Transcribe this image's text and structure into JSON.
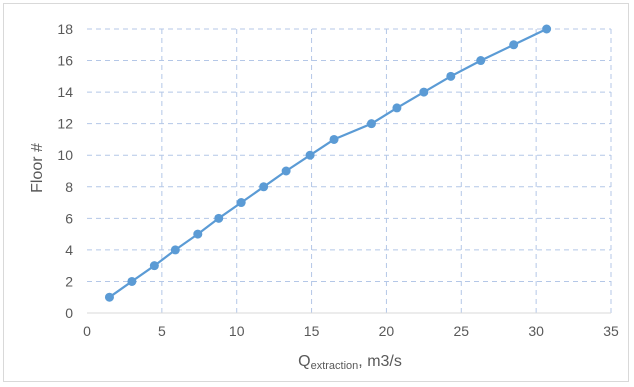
{
  "chart_data": {
    "type": "line",
    "title": "",
    "xlabel_main": "Q",
    "xlabel_sub": "extraction",
    "xlabel_rest": ", m3/s",
    "ylabel": "Floor #",
    "xlim": [
      0,
      35
    ],
    "ylim": [
      0,
      18
    ],
    "xticks": [
      "0",
      "5",
      "10",
      "15",
      "20",
      "25",
      "30",
      "35"
    ],
    "yticks": [
      "0",
      "2",
      "4",
      "6",
      "8",
      "10",
      "12",
      "14",
      "16",
      "18"
    ],
    "grid": true,
    "grid_style": "dashed",
    "line_color": "#5b9bd5",
    "grid_color": "#b4c7e7",
    "series": [
      {
        "x": [
          1.5,
          3.0,
          4.5,
          5.9,
          7.4,
          8.8,
          10.3,
          11.8,
          13.3,
          14.9,
          16.5,
          19.0,
          20.7,
          22.5,
          24.3,
          26.3,
          28.5,
          30.7
        ],
        "y": [
          1,
          2,
          3,
          4,
          5,
          6,
          7,
          8,
          9,
          10,
          11,
          12,
          13,
          14,
          15,
          16,
          17,
          18
        ]
      }
    ]
  }
}
